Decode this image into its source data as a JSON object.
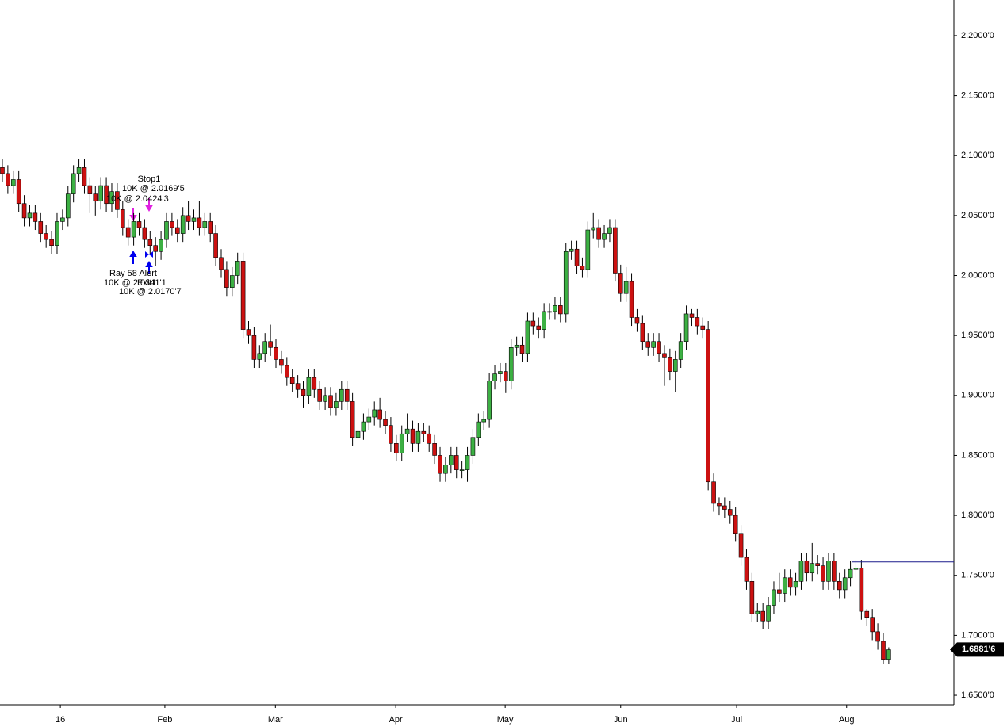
{
  "chart_data": {
    "type": "candlestick",
    "up_color": "#3cb043",
    "down_color": "#cc1111",
    "open": [
      2.09,
      2.085,
      2.075,
      2.08,
      2.06,
      2.048,
      2.052,
      2.045,
      2.035,
      2.03,
      2.025,
      2.045,
      2.048,
      2.068,
      2.085,
      2.09,
      2.075,
      2.068,
      2.062,
      2.075,
      2.06,
      2.07,
      2.055,
      2.04,
      2.032,
      2.045,
      2.04,
      2.03,
      2.025,
      2.02,
      2.03,
      2.045,
      2.04,
      2.035,
      2.05,
      2.045,
      2.048,
      2.04,
      2.045,
      2.035,
      2.015,
      2.005,
      1.99,
      2.0,
      2.012,
      1.955,
      1.95,
      1.93,
      1.935,
      1.945,
      1.94,
      1.93,
      1.925,
      1.915,
      1.91,
      1.905,
      1.9,
      1.915,
      1.905,
      1.895,
      1.9,
      1.89,
      1.895,
      1.905,
      1.895,
      1.865,
      1.87,
      1.878,
      1.882,
      1.888,
      1.88,
      1.875,
      1.86,
      1.852,
      1.868,
      1.872,
      1.86,
      1.87,
      1.868,
      1.86,
      1.85,
      1.835,
      1.842,
      1.85,
      1.838,
      1.838,
      1.85,
      1.865,
      1.878,
      1.88,
      1.912,
      1.918,
      1.92,
      1.912,
      1.94,
      1.942,
      1.935,
      1.962,
      1.958,
      1.955,
      1.97,
      1.97,
      1.975,
      1.968,
      2.02,
      2.022,
      2.008,
      2.005,
      2.038,
      2.04,
      2.03,
      2.035,
      2.04,
      2.002,
      1.985,
      1.995,
      1.965,
      1.96,
      1.945,
      1.94,
      1.945,
      1.935,
      1.932,
      1.92,
      1.93,
      1.945,
      1.968,
      1.965,
      1.958,
      1.955,
      1.828,
      1.81,
      1.808,
      1.805,
      1.8,
      1.785,
      1.765,
      1.745,
      1.718,
      1.72,
      1.712,
      1.725,
      1.738,
      1.735,
      1.748,
      1.74,
      1.745,
      1.762,
      1.752,
      1.76,
      1.758,
      1.745,
      1.762,
      1.745,
      1.738,
      1.748,
      1.755,
      1.756,
      1.72,
      1.715,
      1.703,
      1.695,
      1.68
    ],
    "high": [
      2.097,
      2.092,
      2.087,
      2.087,
      2.067,
      2.059,
      2.059,
      2.052,
      2.042,
      2.037,
      2.052,
      2.055,
      2.075,
      2.092,
      2.097,
      2.097,
      2.082,
      2.075,
      2.082,
      2.082,
      2.077,
      2.077,
      2.062,
      2.047,
      2.052,
      2.052,
      2.047,
      2.037,
      2.032,
      2.037,
      2.052,
      2.052,
      2.047,
      2.057,
      2.062,
      2.055,
      2.062,
      2.052,
      2.052,
      2.042,
      2.022,
      2.012,
      2.007,
      2.019,
      2.019,
      1.962,
      1.957,
      1.942,
      1.952,
      1.959,
      1.947,
      1.937,
      1.932,
      1.922,
      1.917,
      1.912,
      1.922,
      1.922,
      1.912,
      1.907,
      1.907,
      1.902,
      1.912,
      1.912,
      1.902,
      1.877,
      1.885,
      1.889,
      1.895,
      1.898,
      1.887,
      1.882,
      1.867,
      1.875,
      1.885,
      1.879,
      1.877,
      1.877,
      1.875,
      1.867,
      1.857,
      1.849,
      1.857,
      1.857,
      1.845,
      1.857,
      1.872,
      1.885,
      1.887,
      1.919,
      1.925,
      1.927,
      1.927,
      1.947,
      1.949,
      1.949,
      1.969,
      1.969,
      1.965,
      1.977,
      1.977,
      1.982,
      1.982,
      2.027,
      2.029,
      2.029,
      2.015,
      2.045,
      2.052,
      2.047,
      2.042,
      2.047,
      2.047,
      2.009,
      2.007,
      2.002,
      1.972,
      1.967,
      1.952,
      1.952,
      1.952,
      1.942,
      1.939,
      1.937,
      1.952,
      1.975,
      1.972,
      1.972,
      1.965,
      1.962,
      1.835,
      1.815,
      1.815,
      1.812,
      1.807,
      1.792,
      1.772,
      1.752,
      1.727,
      1.727,
      1.732,
      1.745,
      1.752,
      1.755,
      1.755,
      1.752,
      1.769,
      1.769,
      1.777,
      1.767,
      1.765,
      1.769,
      1.769,
      1.752,
      1.755,
      1.762,
      1.763,
      1.763,
      1.722,
      1.722,
      1.71,
      1.702,
      1.69
    ],
    "low": [
      2.078,
      2.068,
      2.068,
      2.053,
      2.041,
      2.041,
      2.038,
      2.028,
      2.023,
      2.018,
      2.018,
      2.038,
      2.041,
      2.061,
      2.078,
      2.068,
      2.052,
      2.05,
      2.055,
      2.053,
      2.053,
      2.048,
      2.033,
      2.025,
      2.025,
      2.033,
      2.023,
      2.018,
      2.008,
      2.013,
      2.023,
      2.033,
      2.028,
      2.028,
      2.038,
      2.038,
      2.033,
      2.033,
      2.028,
      2.008,
      1.998,
      1.983,
      1.983,
      1.993,
      1.948,
      1.943,
      1.923,
      1.923,
      1.928,
      1.933,
      1.923,
      1.918,
      1.908,
      1.903,
      1.898,
      1.89,
      1.893,
      1.898,
      1.888,
      1.888,
      1.883,
      1.883,
      1.888,
      1.888,
      1.858,
      1.858,
      1.863,
      1.871,
      1.875,
      1.873,
      1.868,
      1.853,
      1.845,
      1.845,
      1.861,
      1.853,
      1.853,
      1.861,
      1.853,
      1.843,
      1.828,
      1.828,
      1.835,
      1.831,
      1.831,
      1.828,
      1.843,
      1.858,
      1.871,
      1.873,
      1.905,
      1.911,
      1.902,
      1.905,
      1.933,
      1.928,
      1.928,
      1.951,
      1.948,
      1.948,
      1.963,
      1.963,
      1.961,
      1.961,
      2.013,
      2.001,
      1.998,
      1.998,
      2.031,
      2.023,
      2.023,
      2.028,
      1.995,
      1.978,
      1.978,
      1.958,
      1.953,
      1.938,
      1.933,
      1.933,
      1.928,
      1.908,
      1.913,
      1.903,
      1.923,
      1.938,
      1.958,
      1.951,
      1.948,
      1.821,
      1.803,
      1.8,
      1.798,
      1.793,
      1.778,
      1.758,
      1.738,
      1.711,
      1.711,
      1.705,
      1.705,
      1.718,
      1.728,
      1.728,
      1.733,
      1.733,
      1.738,
      1.745,
      1.745,
      1.751,
      1.738,
      1.738,
      1.738,
      1.731,
      1.731,
      1.741,
      1.748,
      1.713,
      1.708,
      1.696,
      1.688,
      1.676,
      1.676
    ],
    "close": [
      2.085,
      2.075,
      2.08,
      2.06,
      2.048,
      2.052,
      2.045,
      2.035,
      2.03,
      2.025,
      2.045,
      2.048,
      2.068,
      2.085,
      2.09,
      2.075,
      2.068,
      2.062,
      2.075,
      2.06,
      2.07,
      2.055,
      2.04,
      2.032,
      2.045,
      2.04,
      2.03,
      2.025,
      2.02,
      2.03,
      2.045,
      2.04,
      2.035,
      2.05,
      2.045,
      2.048,
      2.04,
      2.045,
      2.035,
      2.015,
      2.005,
      1.99,
      2.0,
      2.012,
      1.955,
      1.95,
      1.93,
      1.935,
      1.945,
      1.94,
      1.93,
      1.925,
      1.915,
      1.91,
      1.905,
      1.9,
      1.915,
      1.905,
      1.895,
      1.9,
      1.89,
      1.895,
      1.905,
      1.895,
      1.865,
      1.87,
      1.878,
      1.882,
      1.888,
      1.88,
      1.875,
      1.86,
      1.852,
      1.868,
      1.872,
      1.86,
      1.87,
      1.868,
      1.86,
      1.85,
      1.835,
      1.842,
      1.85,
      1.838,
      1.838,
      1.85,
      1.865,
      1.878,
      1.88,
      1.912,
      1.918,
      1.92,
      1.912,
      1.94,
      1.942,
      1.935,
      1.962,
      1.958,
      1.955,
      1.97,
      1.97,
      1.975,
      1.968,
      2.02,
      2.022,
      2.008,
      2.005,
      2.038,
      2.04,
      2.03,
      2.035,
      2.04,
      2.002,
      1.985,
      1.995,
      1.965,
      1.96,
      1.945,
      1.94,
      1.945,
      1.935,
      1.932,
      1.92,
      1.93,
      1.945,
      1.968,
      1.965,
      1.958,
      1.955,
      1.828,
      1.81,
      1.808,
      1.805,
      1.8,
      1.785,
      1.765,
      1.745,
      1.718,
      1.72,
      1.712,
      1.725,
      1.738,
      1.735,
      1.748,
      1.74,
      1.745,
      1.762,
      1.752,
      1.76,
      1.758,
      1.745,
      1.762,
      1.745,
      1.738,
      1.748,
      1.755,
      1.756,
      1.72,
      1.715,
      1.703,
      1.695,
      1.68,
      1.688
    ],
    "xlim": [
      -0.43,
      173.9
    ],
    "xticks": [
      {
        "value": 10.6,
        "label": "16"
      },
      {
        "value": 29.7,
        "label": "Feb"
      },
      {
        "value": 49.9,
        "label": "Mar"
      },
      {
        "value": 71.9,
        "label": "Apr"
      },
      {
        "value": 91.9,
        "label": "May"
      },
      {
        "value": 113,
        "label": "Jun"
      },
      {
        "value": 134.2,
        "label": "Jul"
      },
      {
        "value": 154.3,
        "label": "Aug"
      }
    ],
    "ylim": [
      1.6421,
      2.2297
    ],
    "yticks": [
      {
        "value": 1.65,
        "label": "1.6500'0"
      },
      {
        "value": 1.7,
        "label": "1.7000'0"
      },
      {
        "value": 1.75,
        "label": "1.7500'0"
      },
      {
        "value": 1.8,
        "label": "1.8000'0"
      },
      {
        "value": 1.85,
        "label": "1.8500'0"
      },
      {
        "value": 1.9,
        "label": "1.9000'0"
      },
      {
        "value": 1.95,
        "label": "1.9500'0"
      },
      {
        "value": 2.0,
        "label": "2.0000'0"
      },
      {
        "value": 2.05,
        "label": "2.0500'0"
      },
      {
        "value": 2.1,
        "label": "2.1000'0"
      },
      {
        "value": 2.15,
        "label": "2.1500'0"
      },
      {
        "value": 2.2,
        "label": "2.2000'0"
      }
    ],
    "alert_line": {
      "value": 1.7612,
      "color": "#1a1a8c"
    },
    "last_price": {
      "value": 1.68816,
      "label": "1.6881'6"
    },
    "annotations": [
      "Stop1",
      "10K @ 2.0169'5",
      "10K @ 2.0424'3",
      "Ray 58 Alert",
      "10K @ 2.0341'1",
      "Exit1",
      "10K @ 2.0170'7"
    ]
  }
}
